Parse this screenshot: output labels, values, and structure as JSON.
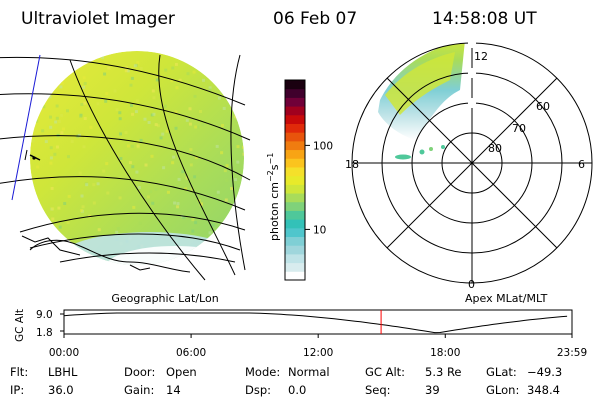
{
  "header": {
    "instrument": "Ultraviolet Imager",
    "date": "06 Feb 07",
    "time": "14:58:08 UT"
  },
  "colorbar": {
    "label": "photon cm^-2 s^-1",
    "label_main": "photon cm",
    "label_exp1": "−2",
    "label_mid": "s",
    "label_exp2": "−1",
    "ticks": [
      "100",
      "10"
    ],
    "tick_values": [
      100,
      10
    ],
    "range": [
      2.5,
      600
    ],
    "colors": [
      "#ffffff",
      "#d8ecee",
      "#bfe3e7",
      "#9fd6dc",
      "#7fcfd5",
      "#4fc6cc",
      "#33c1b8",
      "#4fc89a",
      "#7fd27a",
      "#a8dc5a",
      "#cfe63a",
      "#e8ea2a",
      "#f5e02a",
      "#fbc41e",
      "#f8a414",
      "#f07c10",
      "#e8540c",
      "#e02a0a",
      "#c80a0a",
      "#a0001e",
      "#700038",
      "#40002c",
      "#1a0010"
    ]
  },
  "maps": {
    "left_label": "Geographic Lat/Lon",
    "right_label": "Apex MLat/MLT",
    "polar_lat_labels": [
      "60",
      "70",
      "80"
    ],
    "mlt_labels": {
      "top": "12",
      "bottom": "0",
      "left": "18",
      "right": "6"
    }
  },
  "timeline": {
    "axis_label": "GC Alt",
    "y_ticks": [
      "9.0",
      "1.8"
    ],
    "x_ticks": [
      "00:00",
      "06:00",
      "12:00",
      "18:00",
      "23:59"
    ],
    "current_time_hours": 14.97,
    "marker_color": "#ff0000",
    "min_alt_time_hours": 17.6
  },
  "footer": [
    {
      "key": "Flt:",
      "value": "LBHL"
    },
    {
      "key": "Door:",
      "value": "Open"
    },
    {
      "key": "Mode:",
      "value": "Normal"
    },
    {
      "key": "GC Alt:",
      "value": "5.3 Re"
    },
    {
      "key": "GLat:",
      "value": "−49.3"
    },
    {
      "key": "IP:",
      "value": "36.0"
    },
    {
      "key": "Gain:",
      "value": "14"
    },
    {
      "key": "Dsp:",
      "value": "0.0"
    },
    {
      "key": "Seq:",
      "value": "39"
    },
    {
      "key": "GLon:",
      "value": "348.4"
    }
  ]
}
